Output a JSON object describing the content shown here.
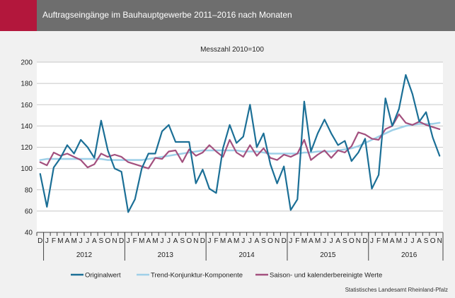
{
  "header": {
    "title": "Auftragseingänge im Bauhauptgewerbe 2011–2016 nach Monaten"
  },
  "source": "Statistisches Landesamt Rheinland-Pfalz",
  "colors": {
    "header_bg": "#6e6e6e",
    "accent": "#b3173c",
    "background": "#f1f1f1",
    "grid": "#c8c8c8",
    "original": "#1b6f96",
    "trend": "#9fd0e8",
    "saison": "#a3507e"
  },
  "chart_data": {
    "type": "line",
    "title": "Messzahl 2010=100",
    "xlabel": "",
    "ylabel": "",
    "ylim": [
      40,
      200
    ],
    "yticks": [
      40,
      60,
      80,
      100,
      120,
      140,
      160,
      180,
      200
    ],
    "grid": true,
    "legend_position": "bottom",
    "month_labels": [
      "D",
      "J",
      "F",
      "M",
      "A",
      "M",
      "J",
      "J",
      "A",
      "S",
      "O",
      "N",
      "D",
      "J",
      "F",
      "M",
      "A",
      "M",
      "J",
      "J",
      "A",
      "S",
      "O",
      "N",
      "D",
      "J",
      "F",
      "M",
      "A",
      "M",
      "J",
      "J",
      "A",
      "S",
      "O",
      "N",
      "D",
      "J",
      "F",
      "M",
      "A",
      "M",
      "J",
      "J",
      "A",
      "S",
      "O",
      "N",
      "D",
      "J",
      "F",
      "M",
      "A",
      "M",
      "J",
      "J",
      "A",
      "S",
      "O",
      "N"
    ],
    "years": [
      "2012",
      "2013",
      "2014",
      "2015",
      "2016"
    ],
    "series": [
      {
        "name": "Originalwert",
        "color": "#1b6f96",
        "values": [
          95,
          64,
          101,
          110,
          122,
          114,
          127,
          120,
          110,
          145,
          117,
          100,
          97,
          59,
          71,
          100,
          114,
          114,
          135,
          141,
          125,
          125,
          125,
          86,
          99,
          81,
          77,
          119,
          141,
          124,
          130,
          160,
          120,
          133,
          104,
          86,
          102,
          61,
          71,
          163,
          116,
          133,
          146,
          133,
          122,
          126,
          107,
          115,
          128,
          81,
          94,
          166,
          140,
          156,
          188,
          170,
          144,
          153,
          129,
          112
        ]
      },
      {
        "name": "Trend-Konjunktur-Komponente",
        "color": "#9fd0e8",
        "values": [
          108,
          109,
          109,
          109,
          109,
          109,
          109,
          109,
          109,
          109,
          108,
          108,
          108,
          108,
          108,
          108,
          109,
          110,
          111,
          112,
          113,
          114,
          115,
          116,
          117,
          117,
          117,
          117,
          117,
          117,
          116,
          116,
          116,
          115,
          114,
          114,
          114,
          114,
          114,
          115,
          115,
          116,
          116,
          116,
          117,
          118,
          119,
          121,
          124,
          127,
          130,
          133,
          136,
          138,
          140,
          141,
          142,
          142,
          142,
          143
        ]
      },
      {
        "name": "Saison- und kalenderbereinigte Werte",
        "color": "#a3507e",
        "values": [
          106,
          103,
          115,
          112,
          114,
          111,
          108,
          101,
          104,
          114,
          111,
          113,
          111,
          106,
          104,
          102,
          100,
          110,
          109,
          116,
          117,
          106,
          118,
          112,
          115,
          122,
          116,
          111,
          127,
          115,
          111,
          122,
          112,
          119,
          110,
          108,
          113,
          111,
          114,
          127,
          108,
          113,
          117,
          110,
          117,
          115,
          121,
          134,
          132,
          128,
          127,
          137,
          140,
          151,
          143,
          141,
          144,
          141,
          139,
          137
        ]
      }
    ]
  }
}
